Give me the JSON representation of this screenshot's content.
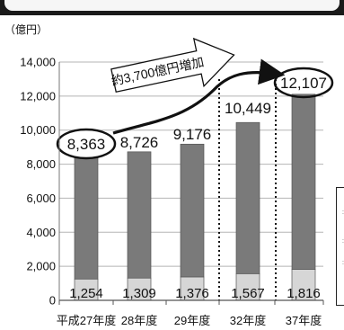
{
  "chart_data": {
    "type": "bar",
    "stacked": true,
    "unit_label": "（億円）",
    "categories": [
      "平成27年度",
      "28年度",
      "29年度",
      "32年度",
      "37年度"
    ],
    "totals": [
      8363,
      8726,
      9176,
      10449,
      12107
    ],
    "total_labels": [
      "8,363",
      "8,726",
      "9,176",
      "10,449",
      "12,107"
    ],
    "series": [
      {
        "values": [
          1254,
          1309,
          1376,
          1567,
          1816
        ],
        "color": "#d6d6d6"
      },
      {
        "values": [
          7109,
          7417,
          7800,
          8882,
          10291
        ],
        "color": "#7a7a7a"
      }
    ],
    "bottom_labels": [
      "1,254",
      "1,309",
      "1,376",
      "1,567",
      "1,816"
    ],
    "ylim": [
      0,
      14000
    ],
    "yticks": [
      0,
      2000,
      4000,
      6000,
      8000,
      10000,
      12000,
      14000
    ],
    "ytick_labels": [
      "0",
      "2,000",
      "4,000",
      "6,000",
      "8,000",
      "10,000",
      "12,000",
      "14,000"
    ],
    "grid": true,
    "annotation": "約3,700億円増加",
    "circled_categories": [
      0,
      4
    ]
  }
}
